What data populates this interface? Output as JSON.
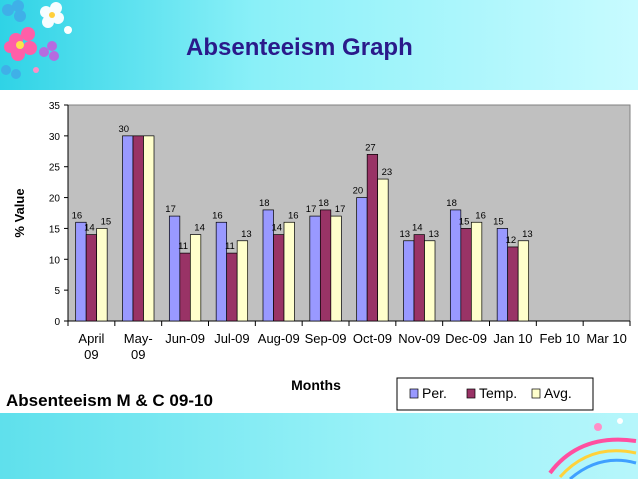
{
  "slide": {
    "title": "Absenteeism Graph",
    "subtitle": "Absenteeism M & C 09-10"
  },
  "colors": {
    "per": "#9999ff",
    "temp": "#993366",
    "avg": "#ffffcc",
    "plot_bg": "#c0c0c0",
    "title": "#2a1a8a"
  },
  "chart_data": {
    "type": "bar",
    "ylabel": "% Value",
    "xlabel": "Months",
    "ylim": [
      0,
      35
    ],
    "yticks": [
      0,
      5,
      10,
      15,
      20,
      25,
      30,
      35
    ],
    "grid": false,
    "legend_position": "bottom-right",
    "categories": [
      [
        "April",
        "09"
      ],
      [
        "May-",
        "09"
      ],
      [
        "Jun-09"
      ],
      [
        "Jul-09"
      ],
      [
        "Aug-09"
      ],
      [
        "Sep-09"
      ],
      [
        "Oct-09"
      ],
      [
        "Nov-09"
      ],
      [
        "Dec-09"
      ],
      [
        "Jan 10"
      ],
      [
        "Feb 10"
      ],
      [
        "Mar 10"
      ]
    ],
    "series": [
      {
        "name": "Per.",
        "values": [
          16,
          30,
          17,
          16,
          18,
          17,
          20,
          13,
          18,
          15,
          null,
          null
        ]
      },
      {
        "name": "Temp.",
        "values": [
          14,
          30,
          11,
          11,
          14,
          18,
          27,
          14,
          15,
          12,
          null,
          null
        ]
      },
      {
        "name": "Avg.",
        "values": [
          15,
          30,
          14,
          13,
          16,
          17,
          23,
          13,
          16,
          13,
          null,
          null
        ]
      }
    ],
    "data_labels": [
      [
        "16",
        "30",
        "17",
        "16",
        "18",
        "17",
        "20",
        "13",
        "18",
        "15"
      ],
      [
        "14",
        "",
        "11",
        "11",
        "14",
        "18",
        "27",
        "14",
        "15",
        "12"
      ],
      [
        "15",
        "",
        "14",
        "13",
        "16",
        "17",
        "23",
        "13",
        "16",
        "13"
      ]
    ]
  }
}
